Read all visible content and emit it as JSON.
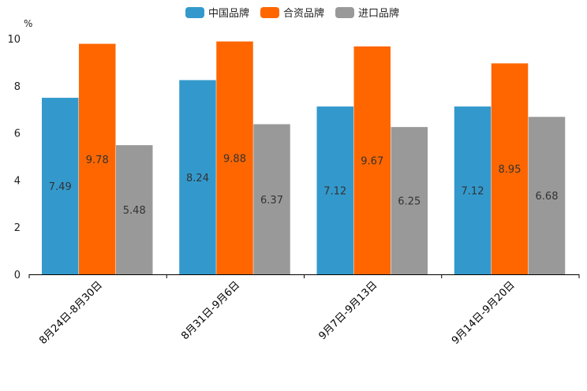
{
  "chart_data": {
    "type": "bar",
    "title": "",
    "unit": "%",
    "xlabel": "",
    "ylabel": "%",
    "ylim": [
      0,
      10
    ],
    "yticks": [
      0,
      2,
      4,
      6,
      8,
      10
    ],
    "categories": [
      "8月24日-8月30日",
      "8月31日-9月6日",
      "9月7日-9月13日",
      "9月14日-9月20日"
    ],
    "series": [
      {
        "name": "中国品牌",
        "color": "#3399cc",
        "values": [
          7.49,
          8.24,
          7.12,
          7.12
        ],
        "labels": [
          "7.49",
          "8.24",
          "7.12",
          "7.12"
        ]
      },
      {
        "name": "合资品牌",
        "color": "#ff6600",
        "values": [
          9.78,
          9.88,
          9.67,
          8.95
        ],
        "labels": [
          "9.78",
          "9.88",
          "9.67",
          "8.95"
        ]
      },
      {
        "name": "进口品牌",
        "color": "#999999",
        "values": [
          5.48,
          6.37,
          6.25,
          6.68
        ],
        "labels": [
          "5.48",
          "6.37",
          "6.25",
          "6.68"
        ]
      }
    ],
    "legend": "top-center",
    "grid": false
  }
}
